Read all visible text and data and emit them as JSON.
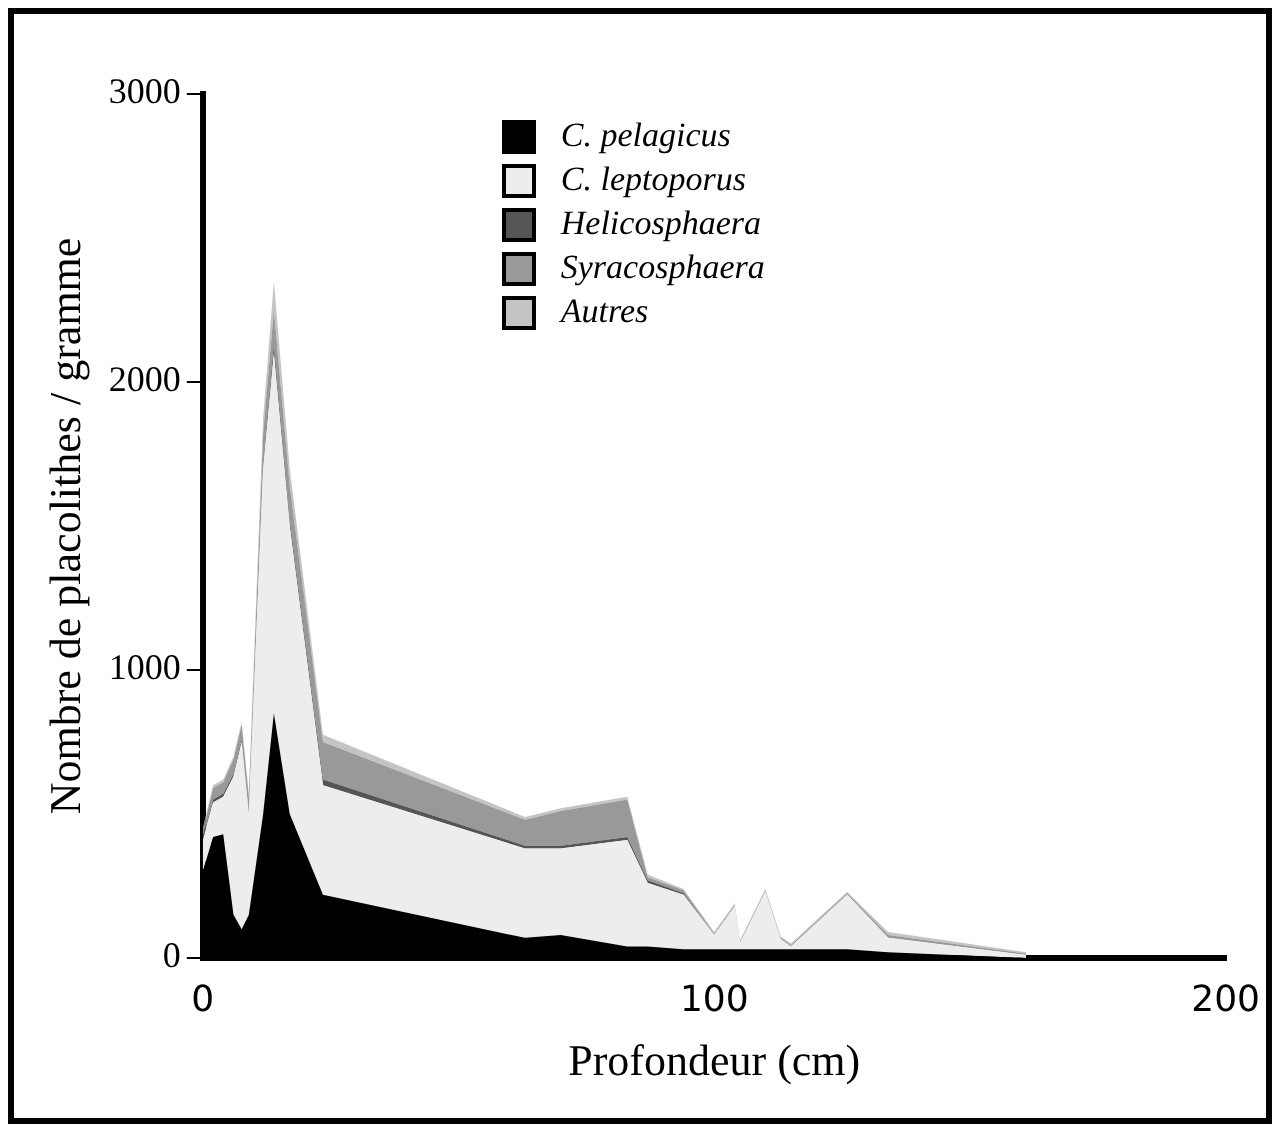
{
  "chart_data": {
    "type": "area",
    "stacked": true,
    "xlabel": "Profondeur (cm)",
    "ylabel": "Nombre de placolithes / gramme",
    "x": [
      0,
      2,
      4,
      6,
      7.6,
      9,
      11.8,
      13.9,
      17,
      23.5,
      63,
      70,
      83,
      87,
      94,
      100,
      104,
      105,
      110,
      113,
      115,
      126,
      134,
      161
    ],
    "series": [
      {
        "name": "C. pelagicus",
        "color": "#000000",
        "values": [
          300,
          420,
          430,
          150,
          100,
          150,
          500,
          850,
          500,
          220,
          70,
          80,
          40,
          40,
          30,
          30,
          30,
          30,
          30,
          30,
          30,
          30,
          20,
          0
        ]
      },
      {
        "name": "C. leptoporus",
        "color": "#ededed",
        "values": [
          110,
          120,
          130,
          480,
          650,
          350,
          1200,
          1250,
          1000,
          380,
          310,
          300,
          370,
          220,
          190,
          50,
          150,
          20,
          200,
          35,
          10,
          190,
          50,
          10
        ]
      },
      {
        "name": "Helicosphaera",
        "color": "#555555",
        "values": [
          10,
          10,
          10,
          10,
          10,
          10,
          20,
          30,
          20,
          20,
          10,
          10,
          10,
          10,
          5,
          0,
          0,
          0,
          0,
          0,
          0,
          0,
          0,
          0
        ]
      },
      {
        "name": "Syracosphaera",
        "color": "#999999",
        "values": [
          20,
          40,
          40,
          50,
          50,
          50,
          100,
          120,
          120,
          130,
          90,
          120,
          130,
          10,
          10,
          5,
          5,
          5,
          5,
          5,
          5,
          5,
          10,
          5
        ]
      },
      {
        "name": "Autres",
        "color": "#c4c4c4",
        "values": [
          10,
          10,
          10,
          10,
          10,
          10,
          55,
          100,
          60,
          25,
          10,
          10,
          10,
          10,
          5,
          5,
          5,
          5,
          5,
          5,
          5,
          5,
          10,
          5
        ]
      }
    ],
    "xlim": [
      0,
      200
    ],
    "xticks": [
      0,
      100,
      200
    ],
    "ylim": [
      0,
      3000
    ],
    "yticks": [
      0,
      1000,
      2000,
      3000
    ],
    "grid": false,
    "legend": "top"
  }
}
